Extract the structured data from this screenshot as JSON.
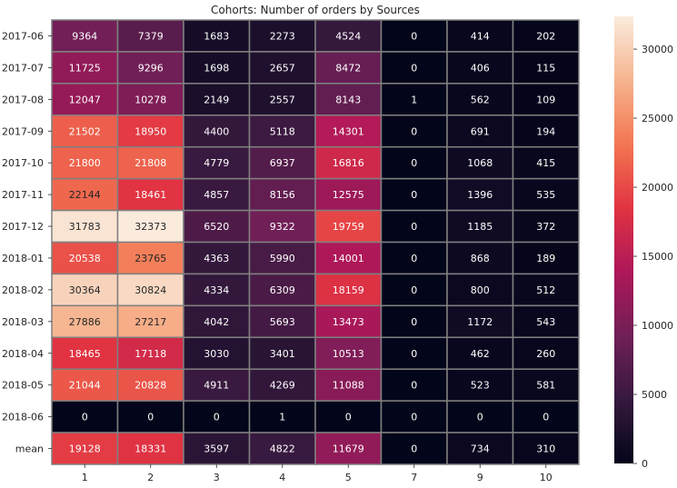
{
  "chart_data": {
    "type": "heatmap",
    "title": "Cohorts: Number of orders by Sources",
    "xlabel": "",
    "ylabel": "",
    "columns": [
      "1",
      "2",
      "3",
      "4",
      "5",
      "7",
      "9",
      "10"
    ],
    "rows": [
      "2017-06",
      "2017-07",
      "2017-08",
      "2017-09",
      "2017-10",
      "2017-11",
      "2017-12",
      "2018-01",
      "2018-02",
      "2018-03",
      "2018-04",
      "2018-05",
      "2018-06",
      "mean"
    ],
    "values": [
      [
        9364,
        7379,
        1683,
        2273,
        4524,
        0,
        414,
        202
      ],
      [
        11725,
        9296,
        1698,
        2657,
        8472,
        0,
        406,
        115
      ],
      [
        12047,
        10278,
        2149,
        2557,
        8143,
        1,
        562,
        109
      ],
      [
        21502,
        18950,
        4400,
        5118,
        14301,
        0,
        691,
        194
      ],
      [
        21800,
        21808,
        4779,
        6937,
        16816,
        0,
        1068,
        415
      ],
      [
        22144,
        18461,
        4857,
        8156,
        12575,
        0,
        1396,
        535
      ],
      [
        31783,
        32373,
        6520,
        9322,
        19759,
        0,
        1185,
        372
      ],
      [
        20538,
        23765,
        4363,
        5990,
        14001,
        0,
        868,
        189
      ],
      [
        30364,
        30824,
        4334,
        6309,
        18159,
        0,
        800,
        512
      ],
      [
        27886,
        27217,
        4042,
        5693,
        13473,
        0,
        1172,
        543
      ],
      [
        18465,
        17118,
        3030,
        3401,
        10513,
        0,
        462,
        260
      ],
      [
        21044,
        20828,
        4911,
        4269,
        11088,
        0,
        523,
        581
      ],
      [
        0,
        0,
        0,
        1,
        0,
        0,
        0,
        0
      ],
      [
        19128,
        18331,
        3597,
        4822,
        11679,
        0,
        734,
        310
      ]
    ],
    "colorbar": {
      "min": 0,
      "max": 32373,
      "ticks": [
        0,
        5000,
        10000,
        15000,
        20000,
        25000,
        30000
      ],
      "colormap": [
        "#03051a",
        "#36193e",
        "#701f57",
        "#ae1759",
        "#e13342",
        "#f37651",
        "#f6b48f",
        "#faebdd"
      ]
    },
    "cell_border_color": "#808080",
    "grid": false
  }
}
